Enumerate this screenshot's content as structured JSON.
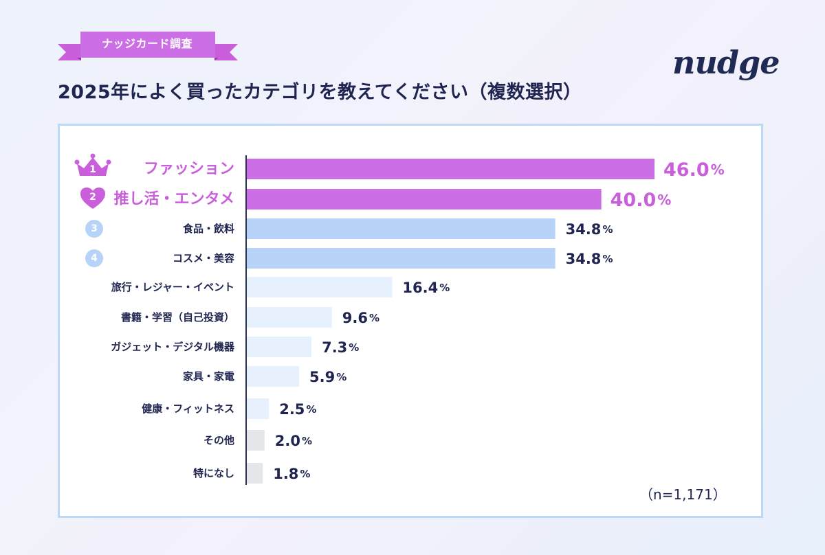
{
  "badge": {
    "text": "ナッジカード調査"
  },
  "title": "2025年によく買ったカテゴリを教えてください（複数選択）",
  "logo": {
    "text": "nudge",
    "icon": "nudge-logo"
  },
  "note": "（n=1,171）",
  "colors": {
    "accent": "#c95fdb",
    "bar_top": "#cc6ee6",
    "bar_mid": "#b7d4f8",
    "bar_low": "#e7f1fd",
    "bar_other": "#e4e6ea",
    "text": "#1f2550",
    "rank_circle": "#b7d4f8"
  },
  "chart_data": {
    "type": "bar",
    "orientation": "horizontal",
    "title": "2025年によく買ったカテゴリを教えてください（複数選択）",
    "xlabel": "",
    "ylabel": "",
    "xlim": [
      0,
      50
    ],
    "unit": "%",
    "categories": [
      "ファッション",
      "推し活・エンタメ",
      "食品・飲料",
      "コスメ・美容",
      "旅行・レジャー・イベント",
      "書籍・学習（自己投資）",
      "ガジェット・デジタル機器",
      "家具・家電",
      "健康・フィットネス",
      "その他",
      "特になし"
    ],
    "values": [
      46.0,
      40.0,
      34.8,
      34.8,
      16.4,
      9.6,
      7.3,
      5.9,
      2.5,
      2.0,
      1.8
    ],
    "value_labels": [
      "46.0",
      "40.0",
      "34.8",
      "34.8",
      "16.4",
      "9.6",
      "7.3",
      "5.9",
      "2.5",
      "2.0",
      "1.8"
    ],
    "ranks": [
      {
        "label": "1",
        "icon": "crown-icon"
      },
      {
        "label": "2",
        "icon": "heart-icon"
      },
      {
        "label": "3",
        "icon": "circle-icon"
      },
      {
        "label": "4",
        "icon": "circle-icon"
      }
    ],
    "n_label": "（n=1,171）"
  }
}
